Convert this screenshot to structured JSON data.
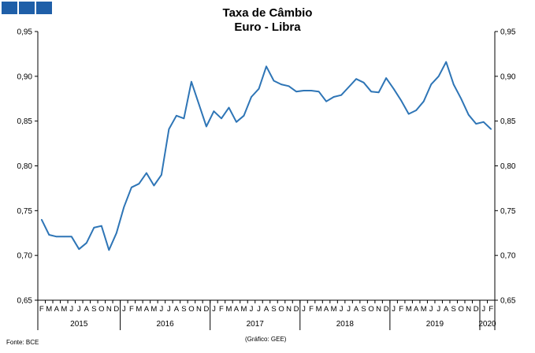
{
  "header": {
    "logo_color": "#1f5fa8",
    "title_line1": "Taxa de Câmbio",
    "title_line2": "Euro - Libra"
  },
  "footer": {
    "source": "Fonte: BCE",
    "credit": "(Gráfico: GEE)"
  },
  "chart_data": {
    "type": "line",
    "title": "Taxa de Câmbio Euro - Libra",
    "ylim": [
      0.65,
      0.95
    ],
    "yticks": [
      "0,65",
      "0,70",
      "0,75",
      "0,80",
      "0,85",
      "0,90",
      "0,95"
    ],
    "y_axis_both_sides": true,
    "grid": false,
    "line_color": "#2e75b6",
    "month_labels": [
      "F",
      "M",
      "A",
      "M",
      "J",
      "J",
      "A",
      "S",
      "O",
      "N",
      "D",
      "J",
      "F",
      "M",
      "A",
      "M",
      "J",
      "J",
      "A",
      "S",
      "O",
      "N",
      "D",
      "J",
      "F",
      "M",
      "A",
      "M",
      "J",
      "J",
      "A",
      "S",
      "O",
      "N",
      "D",
      "J",
      "F",
      "M",
      "A",
      "M",
      "J",
      "J",
      "A",
      "S",
      "O",
      "N",
      "D",
      "J",
      "F",
      "M",
      "A",
      "M",
      "J",
      "J",
      "A",
      "S",
      "O",
      "N",
      "D",
      "J",
      "F"
    ],
    "years": [
      {
        "label": "2015",
        "start": 0,
        "end": 10
      },
      {
        "label": "2016",
        "start": 11,
        "end": 22
      },
      {
        "label": "2017",
        "start": 23,
        "end": 34
      },
      {
        "label": "2018",
        "start": 35,
        "end": 46
      },
      {
        "label": "2019",
        "start": 47,
        "end": 58
      },
      {
        "label": "2020",
        "start": 59,
        "end": 60
      }
    ],
    "values": [
      0.74,
      0.723,
      0.721,
      0.721,
      0.721,
      0.707,
      0.714,
      0.731,
      0.733,
      0.706,
      0.725,
      0.754,
      0.776,
      0.78,
      0.792,
      0.778,
      0.79,
      0.841,
      0.856,
      0.853,
      0.894,
      0.869,
      0.844,
      0.861,
      0.853,
      0.865,
      0.849,
      0.856,
      0.877,
      0.886,
      0.911,
      0.895,
      0.891,
      0.889,
      0.883,
      0.884,
      0.884,
      0.883,
      0.872,
      0.877,
      0.879,
      0.888,
      0.897,
      0.893,
      0.883,
      0.882,
      0.898,
      0.886,
      0.873,
      0.858,
      0.862,
      0.872,
      0.891,
      0.9,
      0.916,
      0.891,
      0.875,
      0.857,
      0.847,
      0.849,
      0.841
    ]
  }
}
